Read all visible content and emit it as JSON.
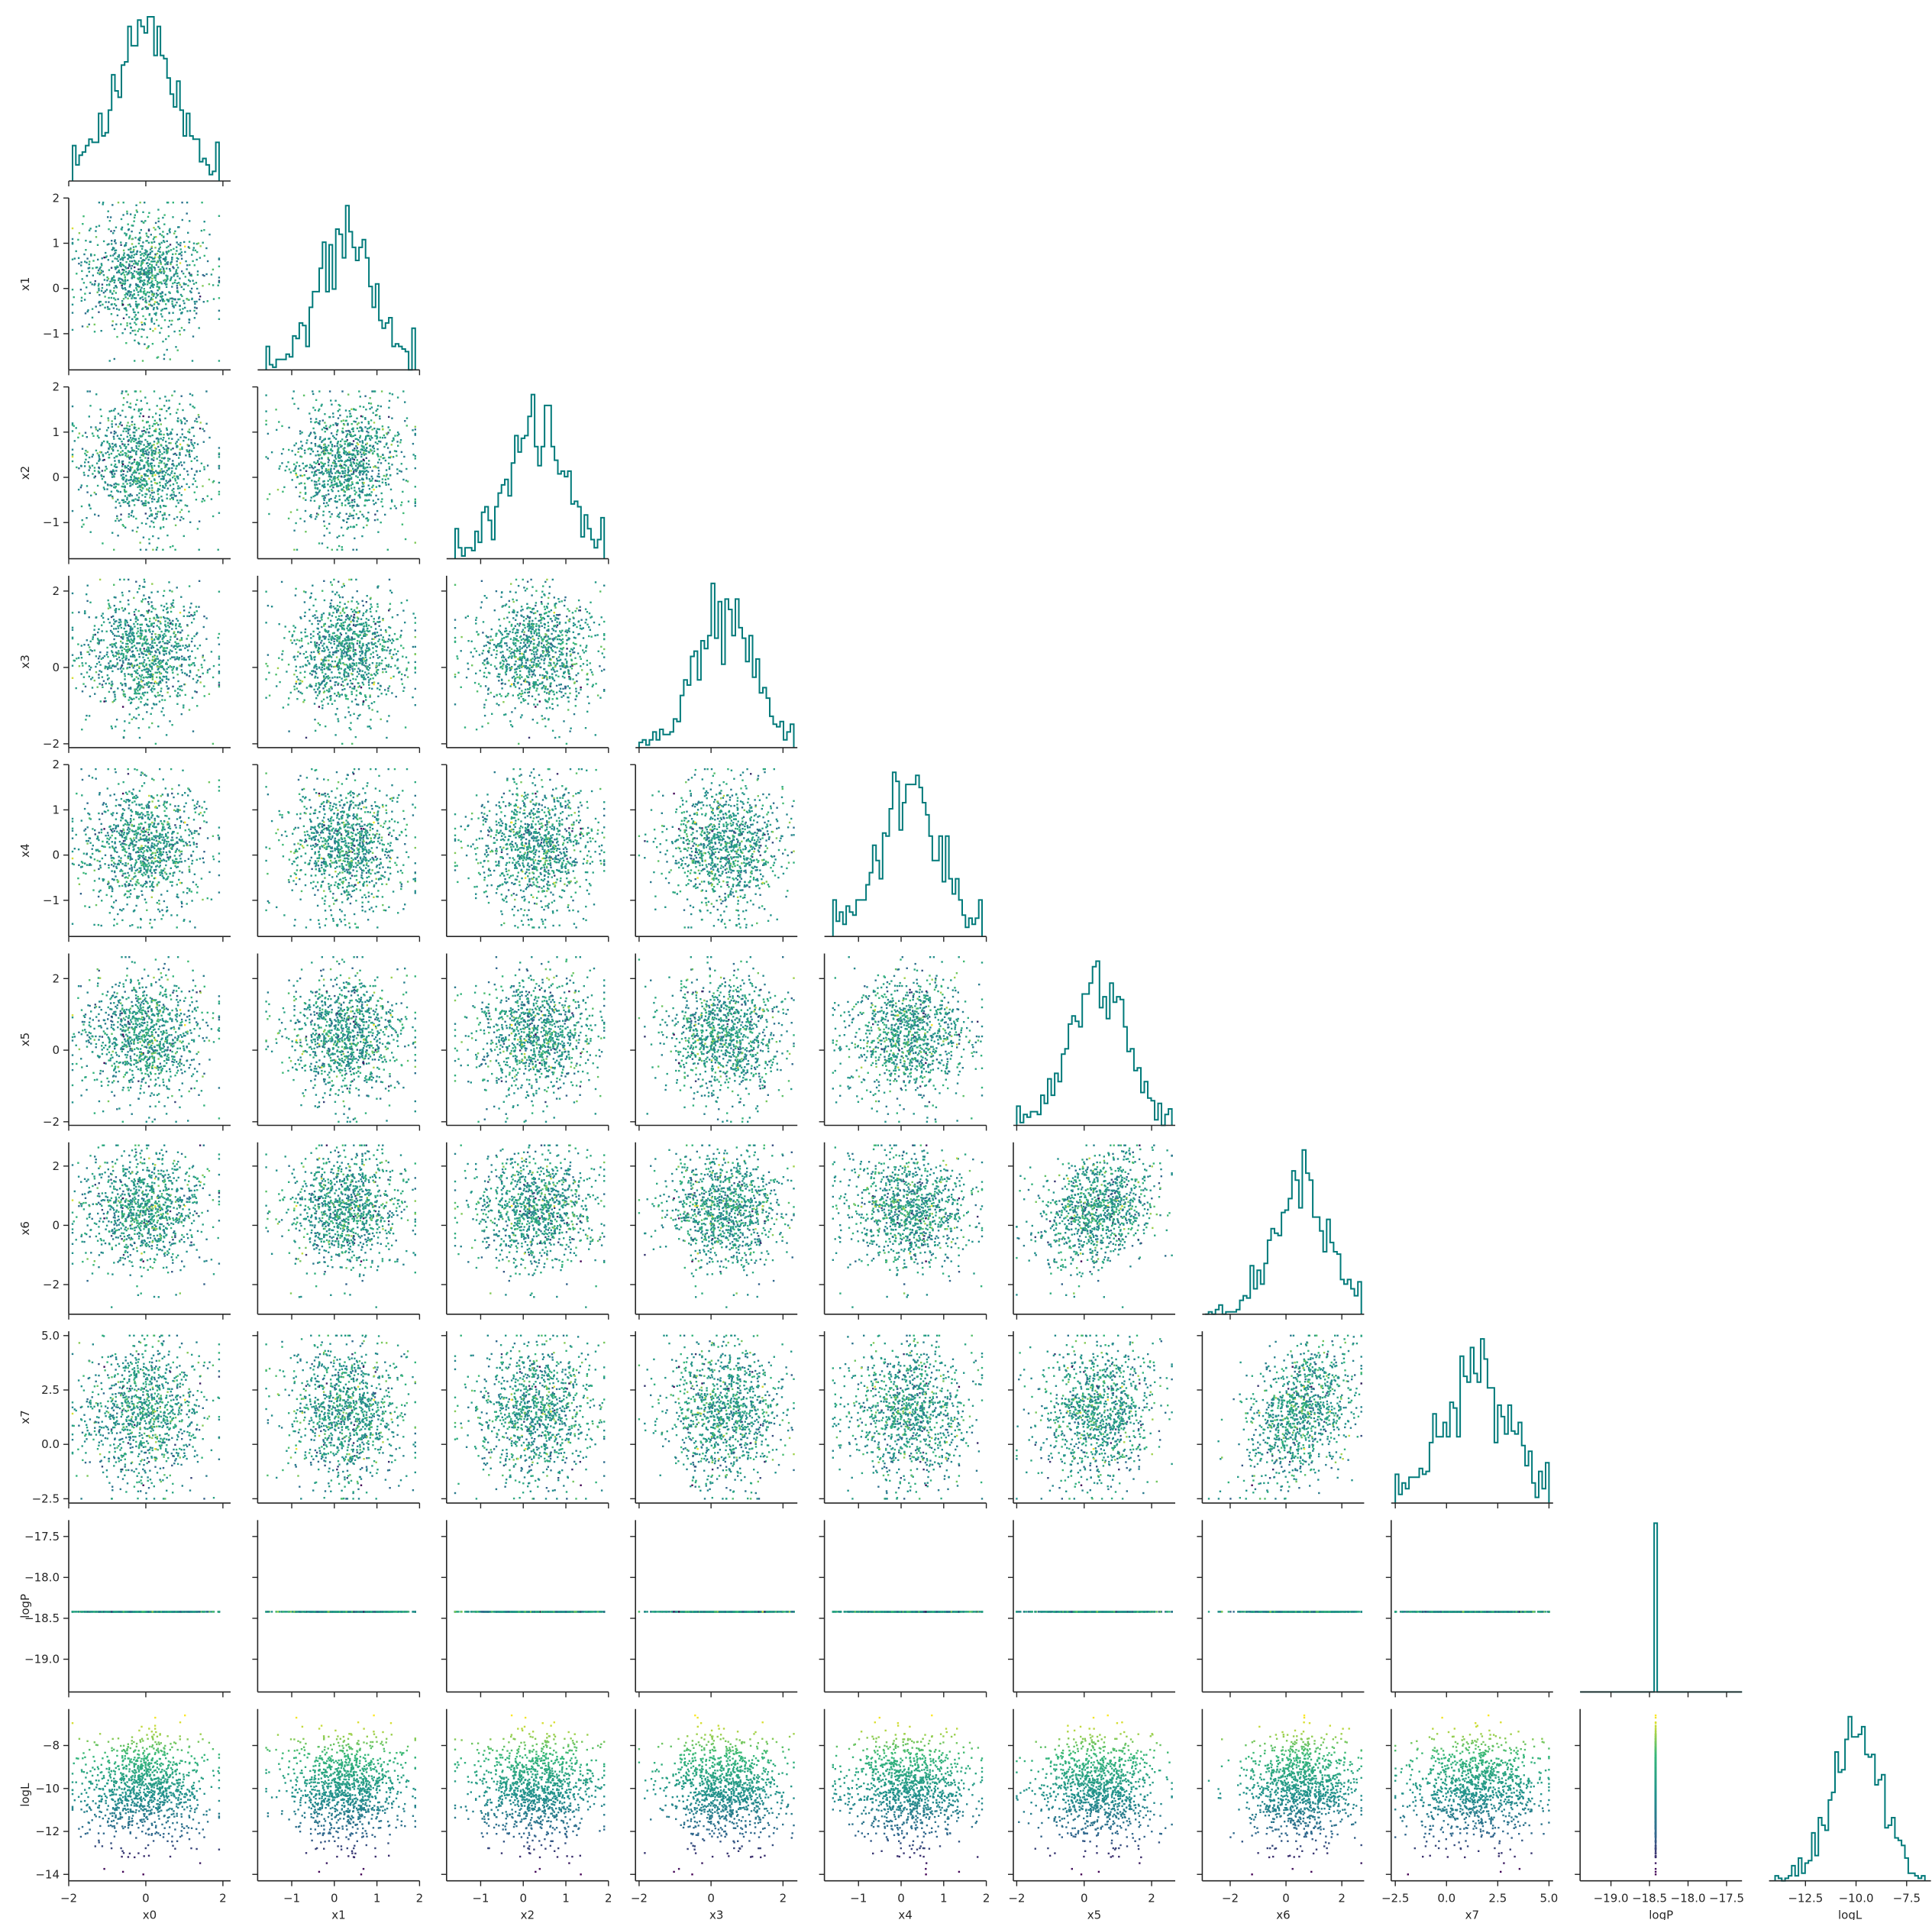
{
  "figure": {
    "kind": "corner plot",
    "hist_color": "#007a7a",
    "axis_color": "#262626",
    "point_colormap": [
      "#440154",
      "#31688e",
      "#21918c",
      "#35b779",
      "#fde725"
    ]
  },
  "chart_data": {
    "type": "scatter",
    "subtype": "corner",
    "title": "",
    "variables": [
      {
        "name": "x0",
        "range": [
          -2,
          2.2
        ],
        "ticks": [
          -2,
          0,
          2
        ],
        "tick_labels": [
          "−2",
          "0",
          "2"
        ],
        "hist": {
          "center": 0,
          "sd": 0.8,
          "lo": -1.9,
          "hi": 1.9
        }
      },
      {
        "name": "x1",
        "range": [
          -1.8,
          2.0
        ],
        "ticks": [
          -1,
          0,
          1,
          2
        ],
        "tick_labels": [
          "−1",
          "0",
          "1",
          "2"
        ],
        "hist": {
          "center": 0.3,
          "sd": 0.7,
          "lo": -1.6,
          "hi": 1.9
        }
      },
      {
        "name": "x2",
        "range": [
          -1.8,
          2.0
        ],
        "ticks": [
          -1,
          0,
          1,
          2
        ],
        "tick_labels": [
          "−1",
          "0",
          "1",
          "2"
        ],
        "hist": {
          "center": 0.3,
          "sd": 0.7,
          "lo": -1.6,
          "hi": 1.9
        }
      },
      {
        "name": "x3",
        "range": [
          -2.1,
          2.4
        ],
        "ticks": [
          -2,
          0,
          2
        ],
        "tick_labels": [
          "−2",
          "0",
          "2"
        ],
        "hist": {
          "center": 0.4,
          "sd": 0.8,
          "lo": -2.0,
          "hi": 2.3
        }
      },
      {
        "name": "x4",
        "range": [
          -1.8,
          2.0
        ],
        "ticks": [
          -1,
          0,
          1,
          2
        ],
        "tick_labels": [
          "−1",
          "0",
          "1",
          "2"
        ],
        "hist": {
          "center": 0.2,
          "sd": 0.7,
          "lo": -1.6,
          "hi": 1.9
        }
      },
      {
        "name": "x5",
        "range": [
          -2.1,
          2.7
        ],
        "ticks": [
          -2,
          0,
          2
        ],
        "tick_labels": [
          "−2",
          "0",
          "2"
        ],
        "hist": {
          "center": 0.4,
          "sd": 0.8,
          "lo": -2.0,
          "hi": 2.6
        }
      },
      {
        "name": "x6",
        "range": [
          -3.0,
          2.8
        ],
        "ticks": [
          -2,
          0,
          2
        ],
        "tick_labels": [
          "−2",
          "0",
          "2"
        ],
        "hist": {
          "center": 0.5,
          "sd": 1.0,
          "lo": -2.9,
          "hi": 2.7
        }
      },
      {
        "name": "x7",
        "range": [
          -2.7,
          5.2
        ],
        "ticks": [
          -2.5,
          0.0,
          2.5,
          5.0
        ],
        "tick_labels": [
          "−2.5",
          "0.0",
          "2.5",
          "5.0"
        ],
        "hist": {
          "center": 1.4,
          "sd": 1.6,
          "lo": -2.5,
          "hi": 5.0
        }
      },
      {
        "name": "logP",
        "range": [
          -19.4,
          -17.3
        ],
        "ticks": [
          -19.0,
          -18.5,
          -18.0,
          -17.5
        ],
        "tick_labels": [
          "−19.0",
          "−18.5",
          "−18.0",
          "−17.5"
        ],
        "constant": -18.42
      },
      {
        "name": "logL",
        "range": [
          -14.3,
          -6.3
        ],
        "ticks": [
          -14,
          -12,
          -10,
          -8
        ],
        "tick_labels": [
          "−14",
          "−12",
          "−10",
          "−8"
        ],
        "hist": {
          "center": -10.0,
          "sd": 1.2,
          "lo": -14.0,
          "hi": -6.6
        },
        "xticks": [
          -12.5,
          -10.0,
          -7.5
        ],
        "xtick_labels": [
          "−12.5",
          "−10.0",
          "−7.5"
        ]
      }
    ],
    "correlations": [
      {
        "i": 6,
        "j": 5,
        "r": 0.25
      },
      {
        "i": 7,
        "j": 6,
        "r": 0.35
      }
    ],
    "color_variable": "logL",
    "grid": false,
    "legend": "none"
  }
}
